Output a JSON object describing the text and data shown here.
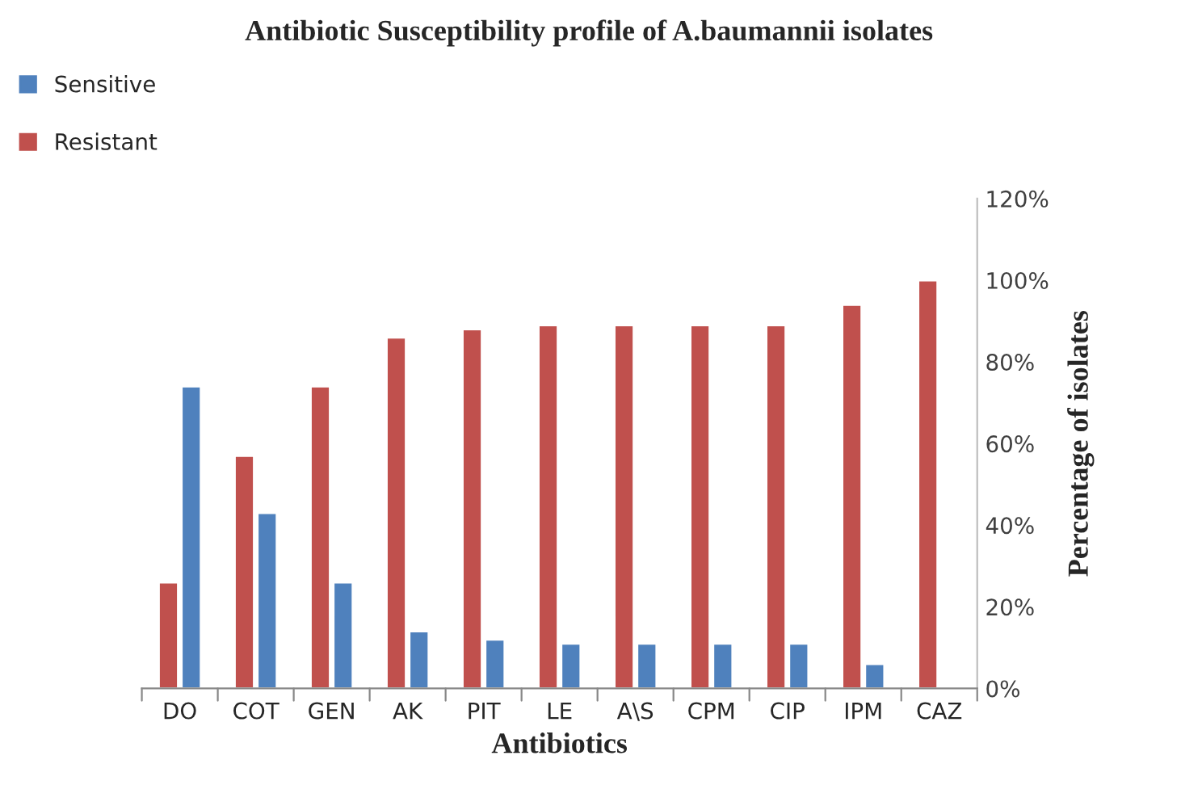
{
  "chart_data": {
    "type": "bar",
    "title": "Antibiotic Susceptibility profile of A.baumannii isolates",
    "xlabel": "Antibiotics",
    "ylabel": "Percentage of isolates",
    "categories": [
      "DO",
      "COT",
      "GEN",
      "AK",
      "PIT",
      "LE",
      "A\\S",
      "CPM",
      "CIP",
      "IPM",
      "CAZ"
    ],
    "series": [
      {
        "name": "Resistant",
        "color": "#c0504d",
        "values": [
          26,
          57,
          74,
          86,
          88,
          89,
          89,
          89,
          89,
          94,
          100
        ]
      },
      {
        "name": "Sensitive",
        "color": "#4f81bd",
        "values": [
          74,
          43,
          26,
          14,
          12,
          11,
          11,
          11,
          11,
          6,
          null
        ]
      }
    ],
    "ylim": [
      0,
      120
    ],
    "yticks": [
      {
        "value": 0,
        "label": "0%"
      },
      {
        "value": 20,
        "label": "20%"
      },
      {
        "value": 40,
        "label": "40%"
      },
      {
        "value": 60,
        "label": "60%"
      },
      {
        "value": 80,
        "label": "80%"
      },
      {
        "value": 100,
        "label": "100%"
      },
      {
        "value": 120,
        "label": "120%"
      }
    ],
    "grid": false,
    "legend": "top left"
  }
}
